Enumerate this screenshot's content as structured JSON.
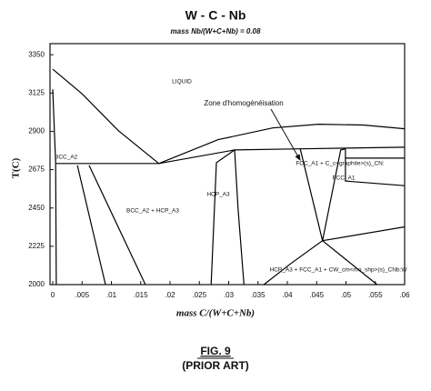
{
  "chart_data": {
    "type": "line",
    "title": "W - C - Nb",
    "subtitle": "mass Nb/(W+C+Nb) = 0.08",
    "x_label": "mass C/(W+C+Nb)",
    "y_label": "T(C)",
    "color": "#000000",
    "xlim": [
      0,
      0.06
    ],
    "ylim": [
      2000,
      3415
    ],
    "xticks": [
      0,
      {
        "value": 0.005,
        "label": ".005"
      },
      {
        "value": 0.01,
        "label": ".01"
      },
      {
        "value": 0.015,
        "label": ".015"
      },
      {
        "value": 0.02,
        "label": ".02"
      },
      {
        "value": 0.025,
        "label": ".025"
      },
      {
        "value": 0.03,
        "label": ".03"
      },
      {
        "value": 0.035,
        "label": ".035"
      },
      {
        "value": 0.04,
        "label": ".04"
      },
      {
        "value": 0.045,
        "label": ".045"
      },
      {
        "value": 0.05,
        "label": ".05"
      },
      {
        "value": 0.055,
        "label": ".055"
      },
      {
        "value": 0.06,
        "label": ".06"
      }
    ],
    "yticks": [
      2000,
      2225,
      2450,
      2675,
      2900,
      3125,
      3350
    ],
    "series": [
      {
        "x": [
          0,
          0.005,
          0.0112,
          0.0181
        ],
        "values": [
          3265,
          3120,
          2904,
          2711
        ]
      },
      {
        "x": [
          0.0181,
          0.0282,
          0.0375,
          0.0453,
          0.053,
          0.06
        ],
        "values": [
          2711,
          2851,
          2920,
          2942,
          2937,
          2915
        ]
      },
      {
        "x": [
          0.0006,
          0.0181,
          0.031,
          0.0422,
          0.06
        ],
        "values": [
          2711,
          2711,
          2791,
          2797,
          2807
        ]
      },
      {
        "x": [
          0,
          0.0005,
          0.0006
        ],
        "values": [
          3147,
          2711,
          2000
        ]
      },
      {
        "x": [
          0.0042,
          0.009
        ],
        "values": [
          2700,
          2000
        ]
      },
      {
        "x": [
          0.0062,
          0.0158
        ],
        "values": [
          2700,
          2000
        ]
      },
      {
        "x": [
          0.031,
          0.0279,
          0.027
        ],
        "values": [
          2791,
          2716,
          2000
        ]
      },
      {
        "x": [
          0.031,
          0.0316,
          0.0326
        ],
        "values": [
          2791,
          2447,
          2000
        ]
      },
      {
        "x": [
          0.0422,
          0.046,
          0.0491,
          0.0499
        ],
        "values": [
          2797,
          2258,
          2791,
          2797
        ]
      },
      {
        "x": [
          0.0499,
          0.0499,
          0.06
        ],
        "values": [
          2797,
          2608,
          2581
        ]
      },
      {
        "x": [
          0.0499,
          0.06
        ],
        "values": [
          2743,
          2743
        ]
      },
      {
        "x": [
          0.036,
          0.0406,
          0.046,
          0.06
        ],
        "values": [
          2000,
          2124,
          2258,
          2339
        ]
      },
      {
        "x": [
          0.046,
          0.0553
        ],
        "values": [
          2258,
          2000
        ]
      }
    ],
    "annotations": [
      "LIQUID",
      "Zone d'homogénéisation",
      "BCC_A2",
      "FCC_A1 + C_c<graphite>(s)_CN:",
      "FCC_A1",
      "HCP_A3",
      "BCC_A2 + HCP_A3",
      "HCP_A3 + FCC_A1 + CW_cm<mo_shp>(s)_CNb:W"
    ]
  },
  "caption": {
    "figure": "FIG. 9",
    "note": "(PRIOR ART)"
  }
}
